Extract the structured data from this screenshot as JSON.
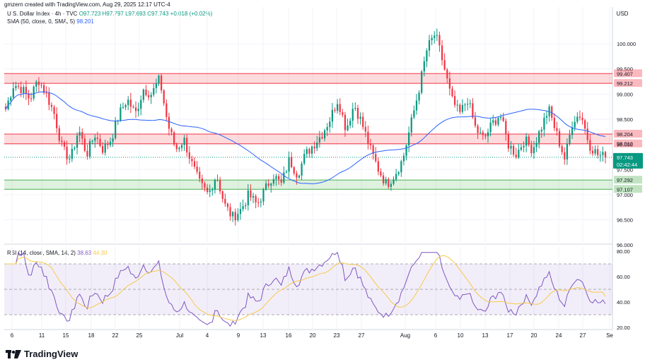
{
  "header": {
    "credit": "gmzern created with TradingView.com, Aug 29, 2025 12:17 UTC-4",
    "symbol": "U.S. Dollar Index · 4h · TVC",
    "ohlc": "O97.723 H97.797 L97.693 C97.743 +0.018 (+0.02%)",
    "sma_label": "SMA (50, close, 0, SMA, 5)",
    "sma_value": "98.201",
    "rsi_label": "RSI (14, close, SMA, 14, 2)",
    "rsi_value": "38.63",
    "rsi_ma_value": "44.30",
    "currency": "USD",
    "brand": "TradingView"
  },
  "colors": {
    "up": "#089981",
    "down": "#f23645",
    "sma": "#2962ff",
    "rsi": "#7e57c2",
    "rsi_ma": "#f7c94a",
    "resistance_zone": "#f23645",
    "support_zone": "#4caf50"
  },
  "chart_data": [
    {
      "type": "candlestick",
      "title": "U.S. Dollar Index · 4h · TVC",
      "yrange": [
        96.0,
        100.6
      ],
      "price_ticks": [
        {
          "value": 100.0,
          "label": "100.000"
        },
        {
          "value": 99.5,
          "label": "99.500"
        },
        {
          "value": 99.0,
          "label": "99.000"
        },
        {
          "value": 98.5,
          "label": "98.500"
        },
        {
          "value": 98.0,
          "label": "98.000"
        },
        {
          "value": 97.5,
          "label": "97.500"
        },
        {
          "value": 97.0,
          "label": "97.000"
        },
        {
          "value": 96.5,
          "label": "96.500"
        },
        {
          "value": 96.0,
          "label": "96.000"
        }
      ],
      "x_ticks": [
        "6",
        "11",
        "15",
        "18",
        "22",
        "25",
        "Jul",
        "4",
        "9",
        "13",
        "16",
        "20",
        "23",
        "27",
        "Aug",
        "6",
        "10",
        "13",
        "17",
        "20",
        "24",
        "27",
        "Se"
      ],
      "zones": [
        {
          "kind": "resistance",
          "upper": 99.407,
          "lower": 99.212
        },
        {
          "kind": "resistance",
          "upper": 98.204,
          "lower": 98.012
        },
        {
          "kind": "support",
          "upper": 97.292,
          "lower": 97.107
        }
      ],
      "zone_labels": [
        "99.407",
        "99.212",
        "98.204",
        "98.012",
        "97.292",
        "97.107"
      ],
      "last_price": {
        "value": 97.743,
        "label": "97.743",
        "countdown": "02:42:44"
      },
      "sma_period": 50,
      "path": [
        98.7,
        99.2,
        99.1,
        98.9,
        99.3,
        99.0,
        98.6,
        97.9,
        97.7,
        98.3,
        97.8,
        98.2,
        97.9,
        98.1,
        98.6,
        98.9,
        98.6,
        99.1,
        99.0,
        99.3,
        98.4,
        97.9,
        98.1,
        97.6,
        97.2,
        97.0,
        97.4,
        96.8,
        96.55,
        96.7,
        97.0,
        96.8,
        97.1,
        97.4,
        97.2,
        97.7,
        97.4,
        97.8,
        98.0,
        98.2,
        98.5,
        98.9,
        98.3,
        98.8,
        98.4,
        97.9,
        97.5,
        97.2,
        97.4,
        97.7,
        98.4,
        99.1,
        99.9,
        100.2,
        99.6,
        98.9,
        98.6,
        98.9,
        98.3,
        98.1,
        98.4,
        98.6,
        98.0,
        97.8,
        98.1,
        97.9,
        98.3,
        98.7,
        98.2,
        97.7,
        98.5,
        98.6,
        98.0,
        97.8,
        97.74
      ]
    },
    {
      "type": "line",
      "title": "RSI (14, close, SMA, 14, 2)",
      "yrange": [
        20,
        80
      ],
      "ticks": [
        {
          "value": 80,
          "label": "80.00"
        },
        {
          "value": 60,
          "label": "60.00"
        },
        {
          "value": 40,
          "label": "40.00"
        },
        {
          "value": 20,
          "label": "20.00"
        }
      ],
      "bands": {
        "upper": 70,
        "middle": 50,
        "lower": 30
      },
      "last_value": 38.63,
      "ma_last_value": 44.3
    }
  ]
}
